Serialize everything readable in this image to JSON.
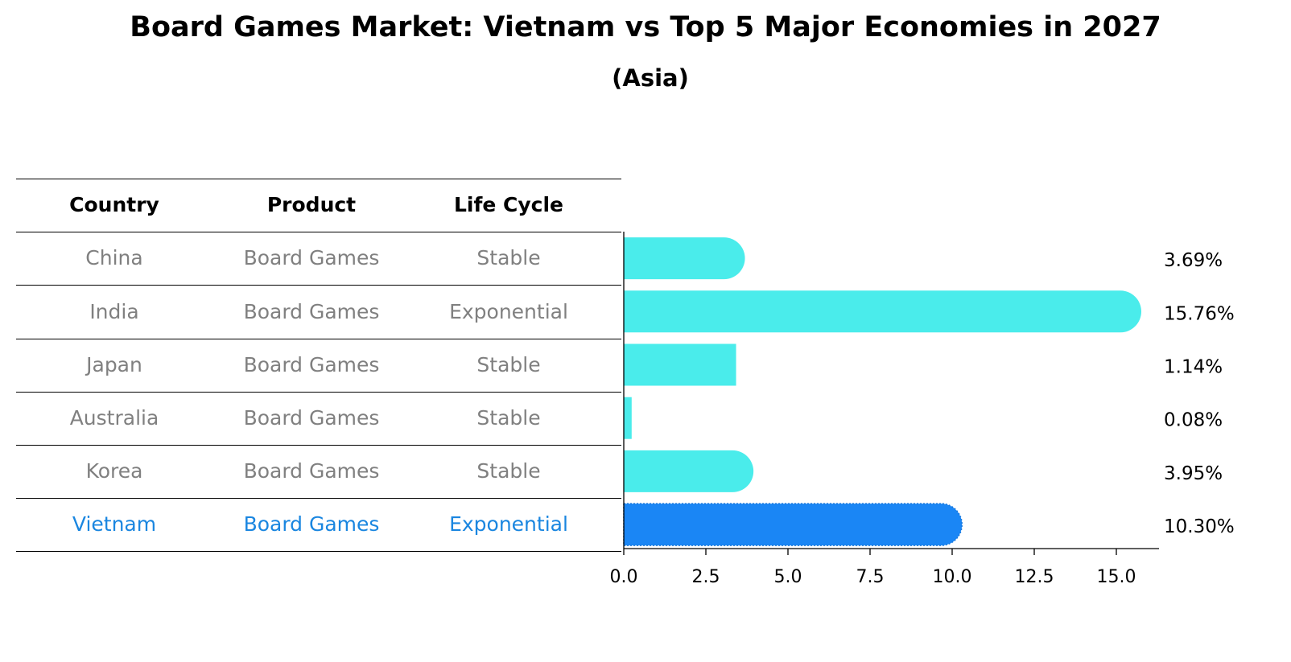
{
  "title": "Board Games Market: Vietnam vs Top 5 Major Economies in 2027",
  "subtitle": "(Asia)",
  "colors": {
    "highlight": "#1a86f5",
    "bar": "#4aeceb",
    "muted_text": "#808080",
    "highlight_text": "#1a86e0"
  },
  "table": {
    "headers": [
      "Country",
      "Product",
      "Life Cycle"
    ],
    "rows": [
      {
        "country": "China",
        "product": "Board Games",
        "life_cycle": "Stable",
        "highlight": false
      },
      {
        "country": "India",
        "product": "Board Games",
        "life_cycle": "Exponential",
        "highlight": false
      },
      {
        "country": "Japan",
        "product": "Board Games",
        "life_cycle": "Stable",
        "highlight": false
      },
      {
        "country": "Australia",
        "product": "Board Games",
        "life_cycle": "Stable",
        "highlight": false
      },
      {
        "country": "Korea",
        "product": "Board Games",
        "life_cycle": "Stable",
        "highlight": false
      },
      {
        "country": "Vietnam",
        "product": "Board Games",
        "life_cycle": "Exponential",
        "highlight": true
      }
    ]
  },
  "chart_data": {
    "type": "bar",
    "orientation": "horizontal",
    "categories": [
      "China",
      "India",
      "Japan",
      "Australia",
      "Korea",
      "Vietnam"
    ],
    "values": [
      3.69,
      15.76,
      1.14,
      0.08,
      3.95,
      10.3
    ],
    "value_labels": [
      "3.69%",
      "15.76%",
      "1.14%",
      "0.08%",
      "3.95%",
      "10.30%"
    ],
    "highlight_category": "Vietnam",
    "xlim": [
      0,
      16.55
    ],
    "xticks": [
      0,
      2.5,
      5,
      7.5,
      10,
      12.5,
      15
    ],
    "xtick_labels": [
      "0.0",
      "2.5",
      "5.0",
      "7.5",
      "10.0",
      "12.5",
      "15.0"
    ],
    "grid": false
  }
}
